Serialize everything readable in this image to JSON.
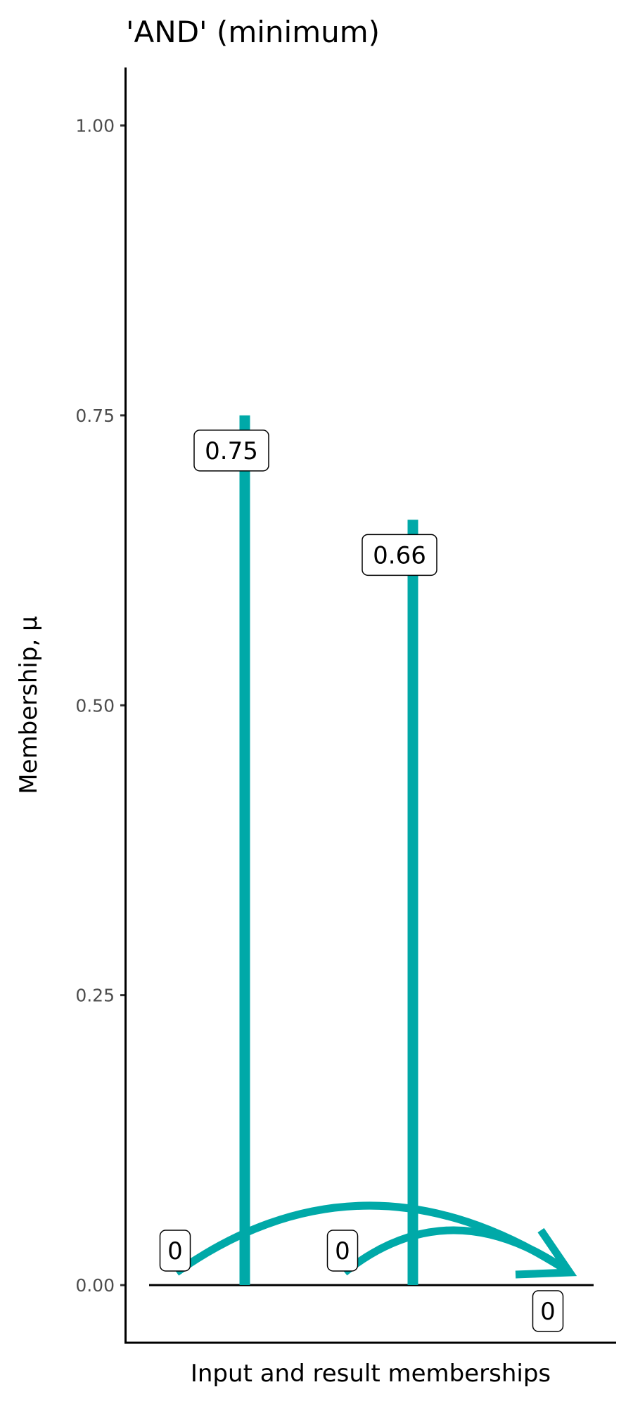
{
  "chart_data": {
    "type": "bar",
    "title": "'AND' (minimum)",
    "xlabel": "Input and result memberships",
    "ylabel": "Membership, µ",
    "ylim": [
      -0.1,
      1.05
    ],
    "yticks": [
      0,
      0.25,
      0.5,
      0.75,
      1
    ],
    "ytick_labels": [
      "0.00",
      "0.25",
      "0.50",
      "0.75",
      "1.00"
    ],
    "grid": false,
    "color": "#00A9A8",
    "bars": [
      {
        "x": 1,
        "value": 0.75,
        "label": "0.75"
      },
      {
        "x": 2,
        "value": 0.66,
        "label": "0.66"
      }
    ],
    "points": [
      {
        "x": 0.45,
        "value": 0,
        "label": "0"
      },
      {
        "x": 1.45,
        "value": 0,
        "label": "0"
      },
      {
        "x": 2.75,
        "value": 0,
        "label": "0"
      }
    ],
    "arrows": [
      {
        "from": "input 1",
        "to": "result"
      },
      {
        "from": "input 2",
        "to": "result"
      }
    ]
  }
}
